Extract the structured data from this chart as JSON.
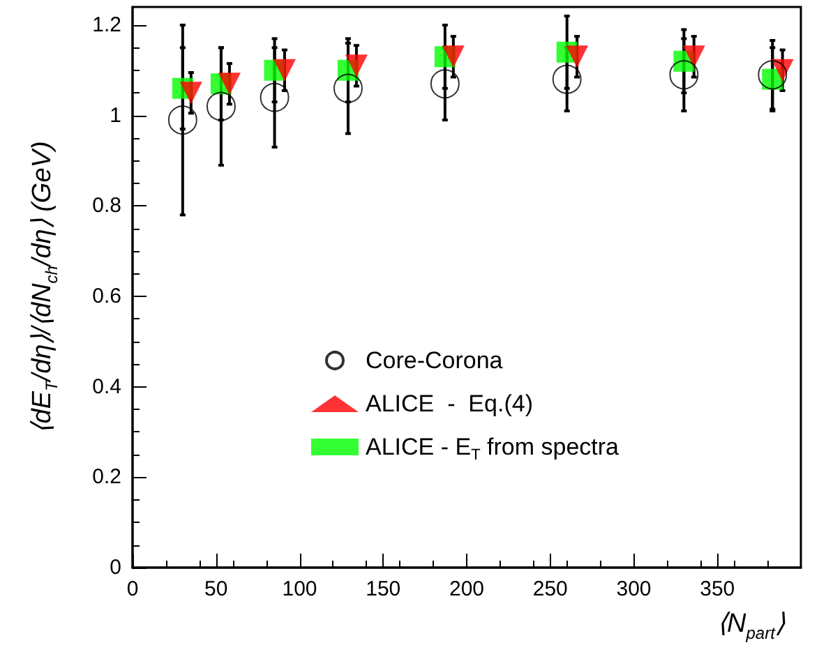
{
  "chart_data": {
    "type": "scatter",
    "xlabel": "⟨N$_{part}$⟩",
    "ylabel": "⟨dE$_{T}$/dη⟩/⟨dN$_{ch}$/dη⟩ (GeV)",
    "xlim": [
      0,
      400
    ],
    "xticks": [
      0,
      50,
      100,
      150,
      200,
      250,
      300,
      350
    ],
    "ylim": [
      0,
      1.24
    ],
    "yticks": [
      0,
      0.2,
      0.4,
      0.6,
      0.8,
      1,
      1.2
    ],
    "grid": false,
    "legend": "center",
    "series": [
      {
        "name": "Core-Corona",
        "color": "#000000",
        "marker": "circle",
        "x": [
          30,
          53,
          85,
          129,
          187,
          260,
          330,
          383
        ],
        "values": [
          0.99,
          1.02,
          1.04,
          1.06,
          1.07,
          1.08,
          1.09,
          1.09
        ],
        "errors": [
          0.21,
          0.13,
          0.11,
          0.1,
          0.08,
          0.07,
          0.08,
          0.076
        ]
      },
      {
        "name": "ALICE  -  Eq.(4)",
        "color": "#ff0000",
        "marker": "triangle-down",
        "x": [
          35,
          58,
          91,
          134,
          192,
          266,
          336,
          389
        ],
        "values": [
          1.05,
          1.07,
          1.1,
          1.11,
          1.13,
          1.13,
          1.13,
          1.1
        ],
        "errors": [
          0.045,
          0.045,
          0.045,
          0.045,
          0.045,
          0.045,
          0.045,
          0.045
        ]
      },
      {
        "name": "ALICE - E$_{T}$ from spectra",
        "color": "#00ff00",
        "marker": "square",
        "x": [
          30,
          53,
          85,
          129,
          187,
          260,
          330,
          383
        ],
        "values": [
          1.06,
          1.07,
          1.1,
          1.1,
          1.13,
          1.14,
          1.12,
          1.08
        ],
        "errors": [
          0.09,
          0.08,
          0.07,
          0.07,
          0.07,
          0.08,
          0.07,
          0.07
        ]
      }
    ]
  }
}
